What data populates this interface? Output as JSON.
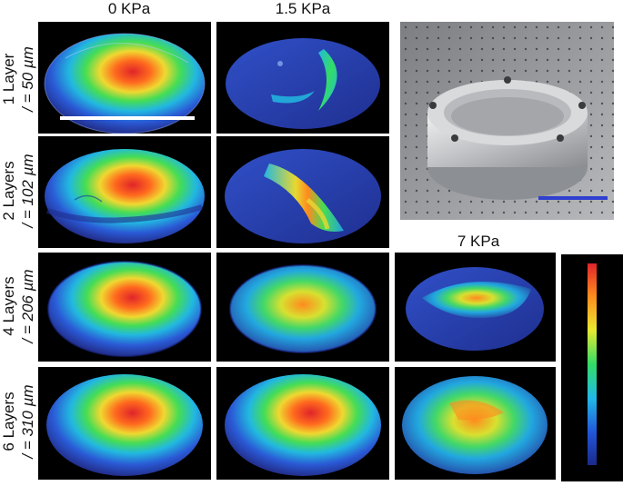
{
  "column_headers": [
    "0 KPa",
    "1.5 KPa"
  ],
  "extra_pressure_label": "7 KPa",
  "rows": [
    {
      "layers": "1 Layer",
      "thickness": "/ = 50 µm"
    },
    {
      "layers": "2 Layers",
      "thickness": "/ = 102 µm"
    },
    {
      "layers": "4 Layers",
      "thickness": "/ = 206 µm"
    },
    {
      "layers": "6 Layers",
      "thickness": "/ = 310 µm"
    }
  ],
  "colors": {
    "panel_background": "#000000",
    "scale_bar_white": "#ffffff",
    "scale_bar_blue": "#2f3fd0",
    "colormap": [
      "#1a2a8a",
      "#2255d8",
      "#22b8e8",
      "#33dd66",
      "#e8e830",
      "#ff8a1e",
      "#e0242a"
    ]
  }
}
